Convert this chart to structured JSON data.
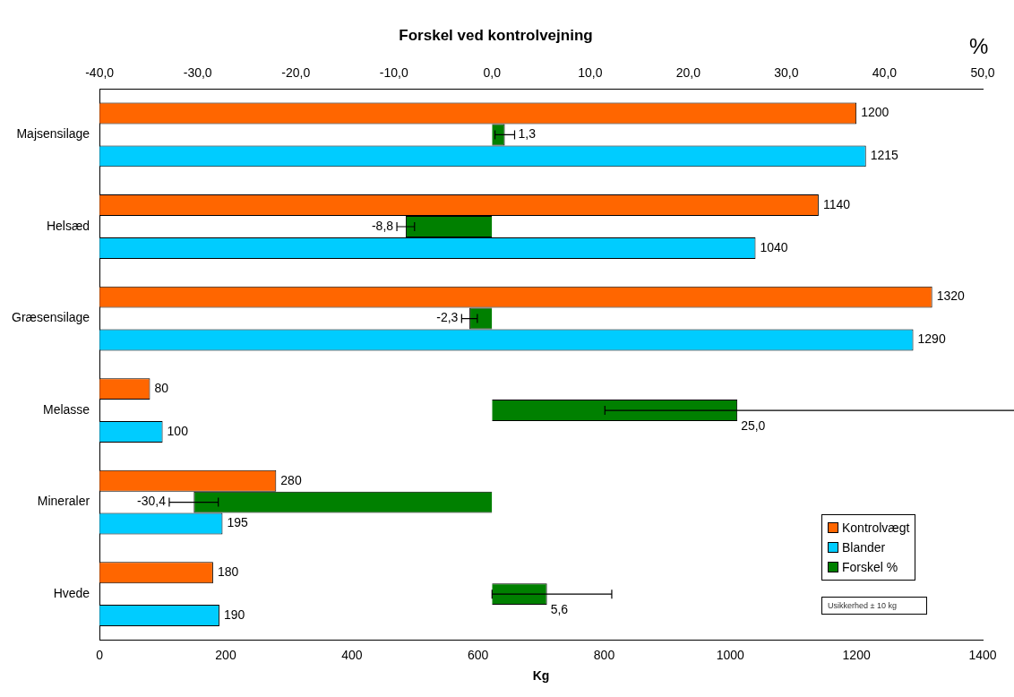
{
  "chart_data": {
    "type": "bar",
    "orientation": "horizontal",
    "title": "Forskel ved kontrolvejning",
    "xlabel": "Kg",
    "x2label": "%",
    "categories": [
      "Majsensilage",
      "Helsæd",
      "Græsensilage",
      "Melasse",
      "Mineraler",
      "Hvede"
    ],
    "series": [
      {
        "name": "Kontrolvægt",
        "color": "#ff6600",
        "values": [
          1200,
          1140,
          1320,
          80,
          280,
          180
        ],
        "value_labels": [
          "1200",
          "1140",
          "1320",
          "80",
          "280",
          "180"
        ]
      },
      {
        "name": "Blander",
        "color": "#00ccff",
        "values": [
          1215,
          1040,
          1290,
          100,
          195,
          190
        ],
        "value_labels": [
          "1215",
          "1040",
          "1290",
          "100",
          "195",
          "190"
        ]
      },
      {
        "name": "Forskel %",
        "color": "#008000",
        "axis": "x2",
        "values": [
          1.3,
          -8.8,
          -2.3,
          25.0,
          -30.4,
          5.6
        ],
        "errors": [
          1.0,
          0.9,
          0.8,
          [
            11.5,
            67.9
          ],
          2.5,
          [
            0.0,
            12.2
          ]
        ],
        "value_labels": [
          "1,3",
          "-8,8",
          "-2,3",
          "25,0",
          "-30,4",
          "5,6"
        ]
      }
    ],
    "xlim": [
      0,
      1400
    ],
    "xticks": [
      0,
      200,
      400,
      600,
      800,
      1000,
      1200,
      1400
    ],
    "x2lim": [
      -40,
      50
    ],
    "x2ticks": [
      {
        "value": -40,
        "label": "-40,0"
      },
      {
        "value": -30,
        "label": "-30,0"
      },
      {
        "value": -20,
        "label": "-20,0"
      },
      {
        "value": -10,
        "label": "-10,0"
      },
      {
        "value": 0,
        "label": "0,0"
      },
      {
        "value": 10,
        "label": "10,0"
      },
      {
        "value": 20,
        "label": "20,0"
      },
      {
        "value": 30,
        "label": "30,0"
      },
      {
        "value": 40,
        "label": "40,0"
      },
      {
        "value": 50,
        "label": "50,0"
      }
    ],
    "grid": false,
    "legend": "bottom right",
    "annotations": [
      "Usikkerhed ± 10 kg"
    ]
  }
}
